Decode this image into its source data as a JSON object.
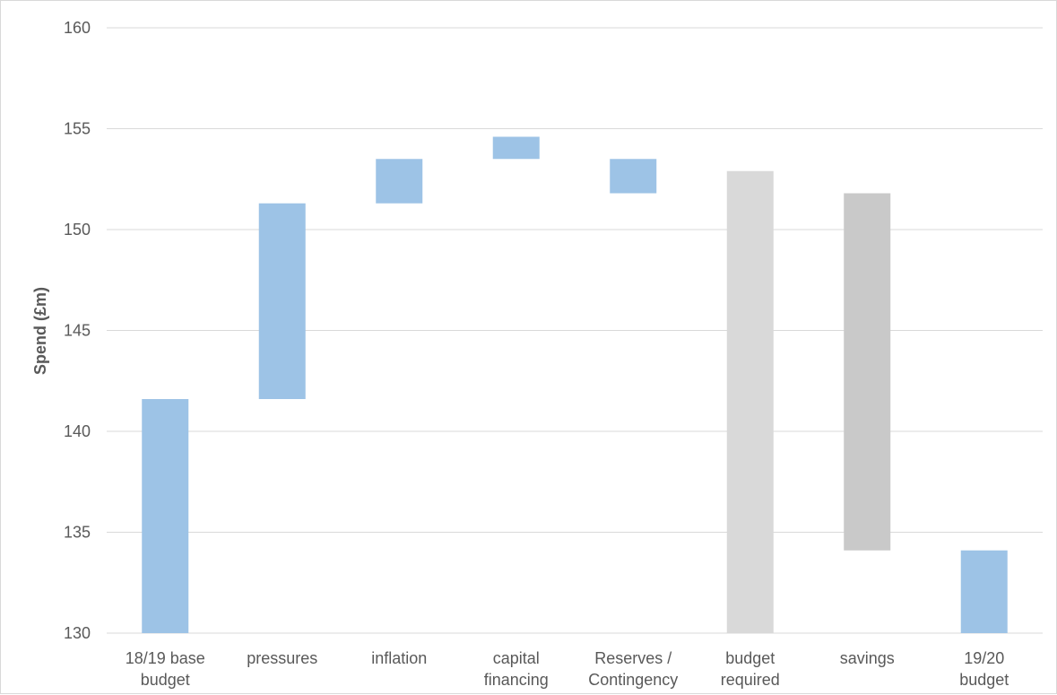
{
  "chart_data": {
    "type": "bar",
    "subtype": "waterfall",
    "title": "",
    "xlabel": "",
    "ylabel": "Spend (£m)",
    "ylim": [
      130,
      160
    ],
    "yticks": [
      130,
      135,
      140,
      145,
      150,
      155,
      160
    ],
    "grid": true,
    "legend": "none",
    "categories": [
      [
        "18/19 base",
        "budget"
      ],
      [
        "pressures"
      ],
      [
        "inflation"
      ],
      [
        "capital",
        "financing"
      ],
      [
        "Reserves /",
        "Contingency"
      ],
      [
        "budget",
        "required"
      ],
      [
        "savings"
      ],
      [
        "19/20",
        "budget"
      ]
    ],
    "bars": [
      {
        "from": 130.0,
        "to": 141.6,
        "color": "#9dc3e6"
      },
      {
        "from": 141.6,
        "to": 151.3,
        "color": "#9dc3e6"
      },
      {
        "from": 151.3,
        "to": 153.5,
        "color": "#9dc3e6"
      },
      {
        "from": 153.5,
        "to": 154.6,
        "color": "#9dc3e6"
      },
      {
        "from": 151.8,
        "to": 153.5,
        "color": "#9dc3e6"
      },
      {
        "from": 130.0,
        "to": 152.9,
        "color": "#d9d9d9"
      },
      {
        "from": 134.1,
        "to": 151.8,
        "color": "#c9c9c9"
      },
      {
        "from": 130.0,
        "to": 134.1,
        "color": "#9dc3e6"
      }
    ]
  }
}
